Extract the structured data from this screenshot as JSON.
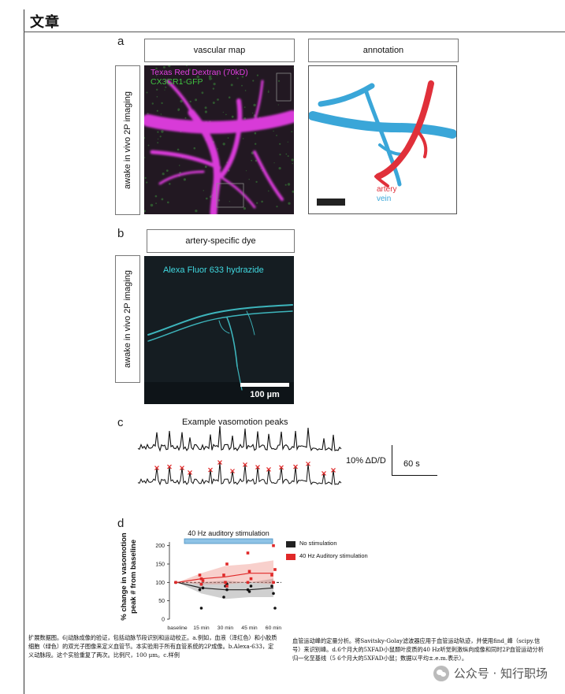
{
  "page": {
    "section_title": "文章",
    "watermark": "公众号 · 知行职场",
    "watermark_icon": "wechat-icon"
  },
  "panel_a": {
    "letter": "a",
    "side_label": "awake in vivo 2P imaging",
    "left_title": "vascular map",
    "right_title": "annotation",
    "image_label_1": "Texas Red Dextran (70kD)",
    "image_label_2": "CX3CR1-GFP",
    "legend_artery": "artery",
    "legend_vein": "vein",
    "colors": {
      "artery": "#e0303a",
      "vein": "#3aa6d8",
      "dextran": "#e040e0",
      "gfp": "#40c040"
    }
  },
  "panel_b": {
    "letter": "b",
    "side_label": "awake in vivo 2P imaging",
    "title": "artery-specific dye",
    "image_label": "Alexa Fluor 633 hydrazide",
    "scale_bar": "100 µm",
    "colors": {
      "dye": "#40d8e0"
    }
  },
  "panel_c": {
    "letter": "c",
    "title": "Example vasomotion peaks",
    "scale_y": "10% ΔD/D",
    "scale_x": "60 s"
  },
  "panel_d": {
    "letter": "d",
    "stim_label": "40 Hz auditory stimulation",
    "legend": [
      "No stimulation",
      "40 Hz Auditory stimulation"
    ],
    "legend_colors": [
      "#222222",
      "#e02828"
    ]
  },
  "chart_data": {
    "type": "line",
    "ylabel": "% change in vasomotion peak # from baseline",
    "categories": [
      "baseline",
      "15 min",
      "30 min",
      "45 min",
      "60 min"
    ],
    "yticks": [
      0,
      50,
      100,
      150,
      200
    ],
    "ylim": [
      0,
      210
    ],
    "reference_line": 100,
    "series": [
      {
        "name": "No stimulation",
        "values": [
          100,
          85,
          80,
          80,
          85
        ],
        "lower": [
          100,
          70,
          55,
          60,
          60
        ],
        "upper": [
          100,
          100,
          105,
          100,
          110
        ],
        "color": "#222222"
      },
      {
        "name": "40 Hz Auditory stimulation",
        "values": [
          100,
          110,
          115,
          125,
          125
        ],
        "lower": [
          100,
          95,
          95,
          100,
          95
        ],
        "upper": [
          100,
          125,
          145,
          150,
          160
        ],
        "color": "#e02828"
      }
    ],
    "points_red": [
      [
        0,
        100
      ],
      [
        1,
        95
      ],
      [
        1,
        105
      ],
      [
        1,
        120
      ],
      [
        1,
        110
      ],
      [
        2,
        150
      ],
      [
        2,
        120
      ],
      [
        2,
        100
      ],
      [
        2,
        90
      ],
      [
        3,
        180
      ],
      [
        3,
        130
      ],
      [
        3,
        110
      ],
      [
        3,
        100
      ],
      [
        4,
        200
      ],
      [
        4,
        135
      ],
      [
        4,
        120
      ],
      [
        4,
        100
      ]
    ],
    "points_black": [
      [
        0,
        100
      ],
      [
        1,
        95
      ],
      [
        1,
        85
      ],
      [
        1,
        80
      ],
      [
        1,
        30
      ],
      [
        2,
        80
      ],
      [
        2,
        60
      ],
      [
        2,
        90
      ],
      [
        2,
        95
      ],
      [
        3,
        80
      ],
      [
        3,
        75
      ],
      [
        3,
        90
      ],
      [
        4,
        90
      ],
      [
        4,
        70
      ],
      [
        4,
        30
      ]
    ]
  },
  "caption": {
    "left": "扩展数据图。6|动脉成像的验证，包括动脉节段识别和运动校正。a.例如，血液（泽红色）和小胶质细胞（绿色）的双光子图像来定义血管节。本实验用于所有血管系统的2P成像。b.Alexa-633，定义动脉段。这个实验重复了两次。比例尺，100 μm。c.样例",
    "right": "血管运动峰的定量分析。将Savitsky-Golay滤波器应用于血管运动轨迹，并使用find_峰（scipy.信号）来识别峰。d.6个月大的5XFAD小鼠颞叶皮质的40 Hz听觉刺激纵向成像和同时2P血管运动分析归一化至基线（5 6个月大的5XFAD小鼠；数据以平均±.e.m.表示）。"
  }
}
